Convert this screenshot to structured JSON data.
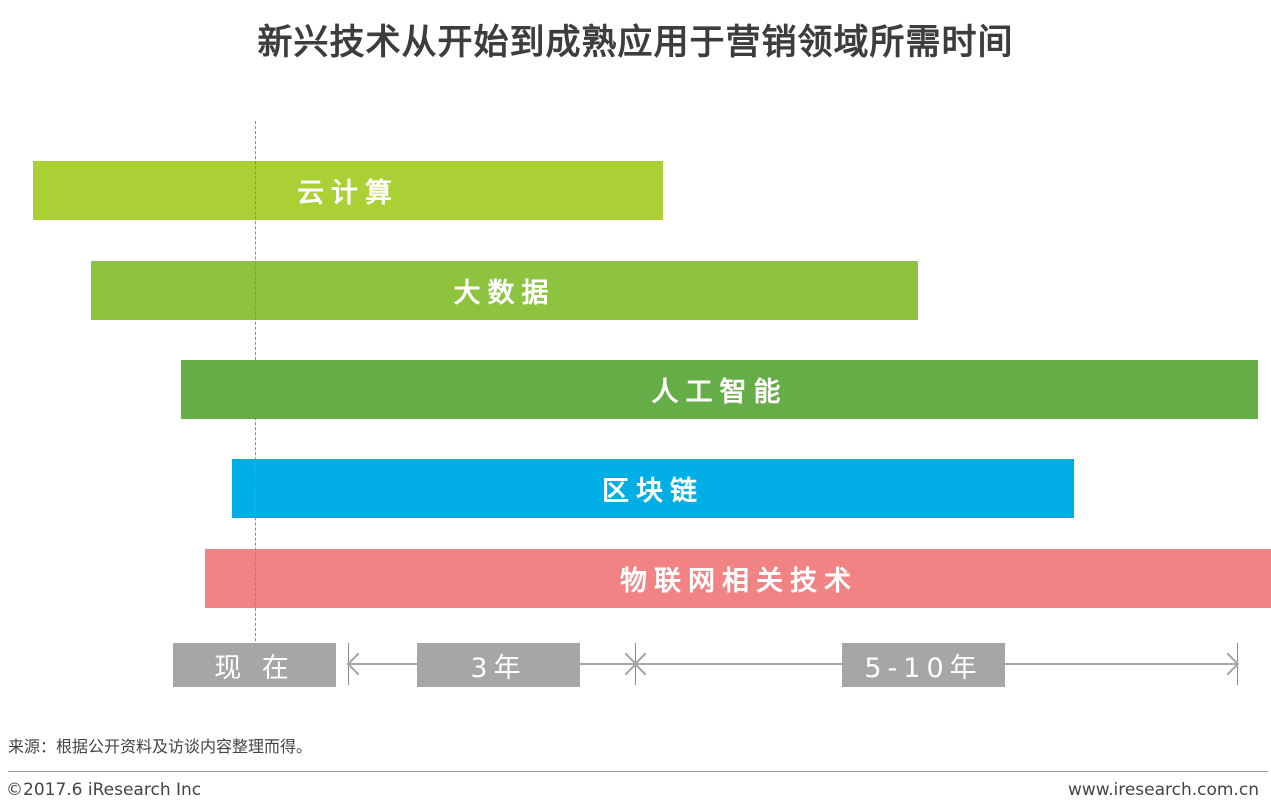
{
  "title": "新兴技术从开始到成熟应用于营销领域所需时间",
  "chart_data": {
    "type": "bar",
    "orientation": "horizontal-gantt",
    "title": "新兴技术从开始到成熟应用于营销领域所需时间",
    "categories": [
      "云计算",
      "大数据",
      "人工智能",
      "区块链",
      "物联网相关技术"
    ],
    "series": [
      {
        "values": [
          3.45,
          4.53,
          5.9,
          4.61,
          5.85
        ]
      }
    ],
    "colors": [
      "#aad036",
      "#8dc33f",
      "#65ad46",
      "#00aee6",
      "#f18385"
    ],
    "timeline": {
      "now_label": "现 在",
      "segments": [
        "3年",
        "5-10年"
      ]
    }
  },
  "source": "来源：根据公开资料及访谈内容整理而得。",
  "footer": {
    "copyright": "©2017.6 iResearch Inc",
    "website": "www.iresearch.com.cn"
  }
}
